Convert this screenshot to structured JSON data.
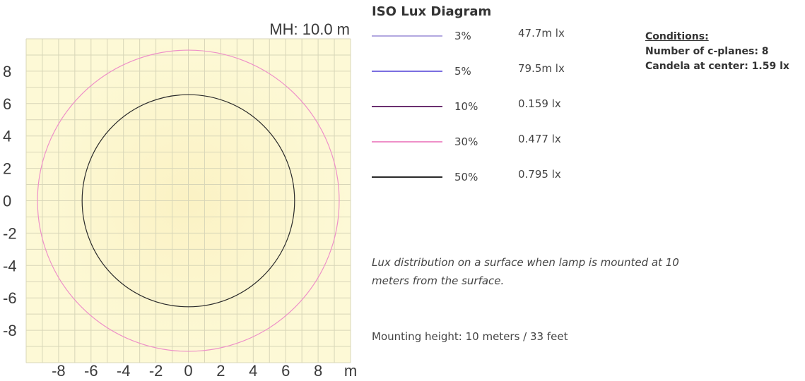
{
  "chart_data": {
    "type": "contour",
    "title": "ISO Lux Diagram",
    "plot_label": "MH: 10.0 m",
    "xlim": [
      -10,
      10
    ],
    "ylim": [
      -10,
      10
    ],
    "x_ticks": [
      "-8",
      "-6",
      "-4",
      "-2",
      "0",
      "2",
      "4",
      "6",
      "8"
    ],
    "x_unit": "m",
    "y_ticks": [
      "8",
      "6",
      "4",
      "2",
      "0",
      "-2",
      "-4",
      "-6",
      "-8"
    ],
    "grid": true,
    "background_color": "#fdf9d6",
    "center_color": "#fbf2c4",
    "grid_color": "#d8d6b8",
    "series": [
      {
        "name": "3%",
        "lux": "47.7m lx",
        "color": "#b3a8e0",
        "radius_m": null
      },
      {
        "name": "5%",
        "lux": "79.5m lx",
        "color": "#7a6ee0",
        "radius_m": null
      },
      {
        "name": "10%",
        "lux": "0.159 lx",
        "color": "#6b3070",
        "radius_m": null
      },
      {
        "name": "30%",
        "lux": "0.477 lx",
        "color": "#ee90c8",
        "radius_m": 9.3
      },
      {
        "name": "50%",
        "lux": "0.795 lx",
        "color": "#2a2a2a",
        "radius_m": 6.55
      }
    ]
  },
  "conditions": {
    "heading": "Conditions:",
    "c_planes": "Number of c-planes: 8",
    "candela": "Candela at center: 1.59 lx"
  },
  "description": "Lux distribution on a surface when lamp is mounted at 10 meters from the surface.",
  "mounting": "Mounting height: 10 meters / 33 feet"
}
